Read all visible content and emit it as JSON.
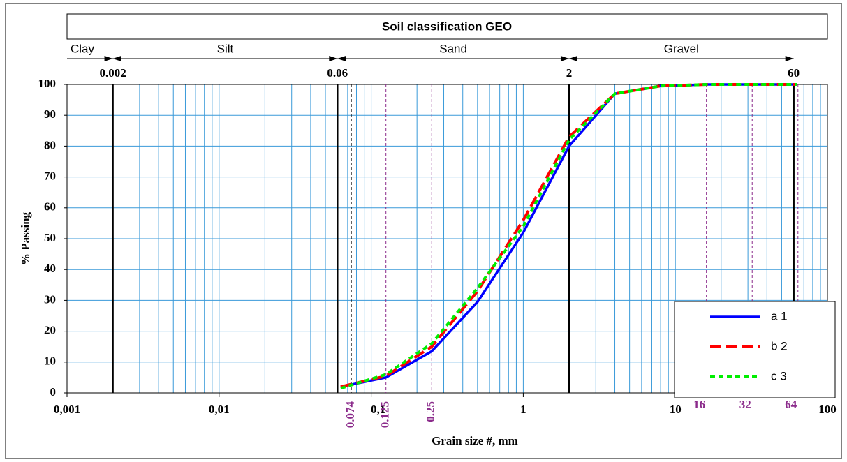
{
  "chart_data": {
    "type": "line",
    "title": "Soil classification GEO",
    "x_label": "Grain size #, mm",
    "y_label": "% Passing",
    "log_x": true,
    "grid": true,
    "legend_position": "lower right",
    "xlim": [
      0.001,
      100
    ],
    "ylim": [
      0,
      100
    ],
    "xticks": [
      {
        "value": 0.001,
        "label": "0,001"
      },
      {
        "value": 0.01,
        "label": "0,01"
      },
      {
        "value": 0.1,
        "label": "0,1"
      },
      1,
      10,
      100
    ],
    "yticks": [
      0,
      10,
      20,
      30,
      40,
      50,
      60,
      70,
      80,
      90,
      100
    ],
    "zones": [
      "Clay",
      "Silt",
      "Sand",
      "Gravel"
    ],
    "boundaries": [
      0.002,
      0.06,
      2,
      60
    ],
    "sieves": [
      0.074,
      0.125,
      0.25,
      16,
      32,
      64
    ],
    "x": [
      0.063,
      0.125,
      0.25,
      0.5,
      1,
      2,
      4,
      8,
      16,
      32,
      63
    ],
    "series": [
      {
        "name": "a 1",
        "color": "#0000ff",
        "values": [
          2,
          5,
          13.5,
          29.5,
          52,
          80,
          97,
          99.5,
          100,
          100,
          100
        ]
      },
      {
        "name": "b 2",
        "color": "#ff0000",
        "values": [
          2,
          5.5,
          15,
          33,
          56,
          83,
          97,
          99.5,
          100,
          100,
          100
        ]
      },
      {
        "name": "c 3",
        "color": "#00ee00",
        "values": [
          1.5,
          6,
          16,
          34,
          54,
          82,
          97,
          99.5,
          100,
          100,
          100
        ]
      }
    ]
  }
}
